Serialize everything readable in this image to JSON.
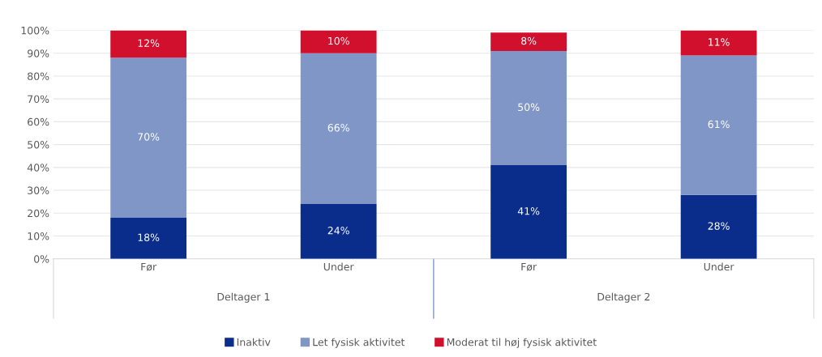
{
  "chart_data": {
    "type": "bar",
    "stacked": true,
    "categories": [
      "Før",
      "Under",
      "Før",
      "Under"
    ],
    "series": [
      {
        "name": "Inaktiv",
        "color": "#0a2d8c",
        "values": [
          18,
          24,
          41,
          28
        ],
        "value_labels": [
          "18%",
          "24%",
          "41%",
          "28%"
        ]
      },
      {
        "name": "Let fysisk aktivitet",
        "color": "#7f96c6",
        "values": [
          70,
          66,
          50,
          61
        ],
        "value_labels": [
          "70%",
          "66%",
          "50%",
          "61%"
        ]
      },
      {
        "name": "Moderat til høj fysisk aktivitet",
        "color": "#d0102c",
        "values": [
          12,
          10,
          8,
          11
        ],
        "value_labels": [
          "12%",
          "10%",
          "8%",
          "11%"
        ]
      }
    ],
    "ylim": [
      0,
      100
    ],
    "yticks": [
      {
        "value": 0,
        "label": "0%"
      },
      {
        "value": 10,
        "label": "10%"
      },
      {
        "value": 20,
        "label": "20%"
      },
      {
        "value": 30,
        "label": "30%"
      },
      {
        "value": 40,
        "label": "40%"
      },
      {
        "value": 50,
        "label": "50%"
      },
      {
        "value": 60,
        "label": "60%"
      },
      {
        "value": 70,
        "label": "70%"
      },
      {
        "value": 80,
        "label": "80%"
      },
      {
        "value": 90,
        "label": "90%"
      },
      {
        "value": 100,
        "label": "100%"
      }
    ],
    "annotations": [
      "Deltager 1",
      "Deltager 2"
    ],
    "grid": "y",
    "legend": "bottom"
  }
}
